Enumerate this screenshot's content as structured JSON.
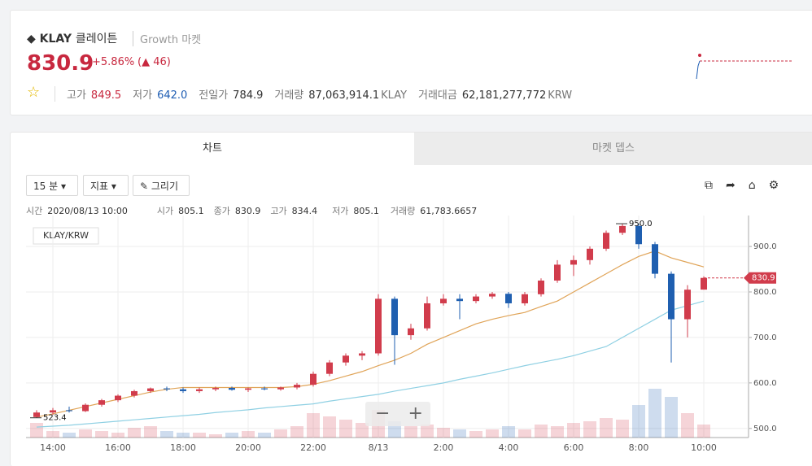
{
  "header": {
    "symbol": "KLAY",
    "name": "클레이튼",
    "market": "Growth 마켓",
    "price": "830.9",
    "change_rate": "+5.86%",
    "change": "46",
    "stats": [
      {
        "label": "고가",
        "value": "849.5"
      },
      {
        "label": "저가",
        "value": "642.0"
      },
      {
        "label": "전일가",
        "value": "784.9"
      },
      {
        "label": "거래량",
        "value": "87,063,914.1",
        "unit": "KLAY"
      },
      {
        "label": "거래대금",
        "value": "62,181,277,772",
        "unit": "KRW"
      }
    ]
  },
  "tabs": [
    "차트",
    "마켓 뎁스"
  ],
  "toolbar": [
    "15 분",
    "지표",
    "그리기"
  ],
  "info": [
    {
      "label": "시간",
      "value": "2020/08/13 10:00"
    },
    {
      "label": "시가",
      "value": "805.1"
    },
    {
      "label": "종가",
      "value": "830.9"
    },
    {
      "label": "고가",
      "value": "834.4"
    },
    {
      "label": "저가",
      "value": "805.1"
    },
    {
      "label": "거래량",
      "value": "61,783.6657"
    }
  ],
  "chart_data": {
    "type": "candlestick",
    "pair": "KLAY/KRW",
    "categories": [
      null,
      "14:00",
      null,
      null,
      null,
      "16:00",
      null,
      null,
      null,
      "18:00",
      null,
      null,
      null,
      "20:00",
      null,
      null,
      null,
      "22:00",
      null,
      null,
      null,
      "8/13",
      null,
      null,
      null,
      "2:00",
      null,
      null,
      null,
      "4:00",
      null,
      null,
      null,
      "6:00",
      null,
      null,
      null,
      "8:00",
      null,
      null,
      null,
      "10:00"
    ],
    "open": [
      525,
      535,
      540,
      538,
      552,
      562,
      572,
      582,
      588,
      586,
      582,
      586,
      589,
      585,
      588,
      586,
      590,
      596,
      620,
      645,
      660,
      665,
      785,
      705,
      720,
      775,
      785,
      780,
      790,
      796,
      775,
      795,
      825,
      860,
      870,
      895,
      930,
      945,
      905,
      840,
      740,
      805.1
    ],
    "high": [
      540,
      545,
      548,
      555,
      565,
      575,
      585,
      590,
      592,
      590,
      590,
      592,
      592,
      590,
      592,
      592,
      600,
      625,
      650,
      665,
      670,
      795,
      790,
      730,
      790,
      795,
      795,
      795,
      800,
      800,
      800,
      830,
      870,
      880,
      900,
      935,
      950,
      950,
      910,
      845,
      815,
      834.4
    ],
    "low": [
      523.4,
      530,
      535,
      536,
      548,
      558,
      568,
      578,
      582,
      578,
      578,
      582,
      583,
      580,
      584,
      583,
      586,
      592,
      615,
      638,
      650,
      660,
      640,
      695,
      715,
      770,
      740,
      775,
      785,
      765,
      770,
      790,
      820,
      835,
      860,
      890,
      925,
      895,
      830,
      645,
      700,
      805.1
    ],
    "close": [
      535,
      540,
      538,
      552,
      562,
      572,
      582,
      588,
      586,
      582,
      586,
      589,
      585,
      588,
      586,
      590,
      596,
      620,
      645,
      660,
      665,
      785,
      705,
      720,
      775,
      785,
      780,
      790,
      796,
      775,
      795,
      825,
      860,
      870,
      895,
      930,
      945,
      905,
      840,
      740,
      805,
      830.9
    ],
    "up_color": "#d13c4c",
    "down_color": "#1f5fb0",
    "moving_averages": [
      {
        "color": "#e0a458",
        "values": [
          525,
          532,
          540,
          548,
          556,
          564,
          572,
          580,
          586,
          590,
          590,
          590,
          590,
          590,
          590,
          590,
          592,
          597,
          605,
          615,
          625,
          638,
          650,
          665,
          685,
          700,
          715,
          730,
          740,
          748,
          755,
          768,
          780,
          800,
          820,
          840,
          860,
          878,
          890,
          875,
          865,
          855
        ]
      },
      {
        "color": "#8fd0e3",
        "values": [
          503,
          505,
          507,
          510,
          513,
          516,
          519,
          522,
          525,
          528,
          531,
          535,
          538,
          541,
          545,
          548,
          551,
          554,
          560,
          565,
          570,
          575,
          582,
          588,
          594,
          600,
          608,
          615,
          622,
          630,
          638,
          645,
          652,
          660,
          670,
          680,
          700,
          720,
          740,
          760,
          770,
          780
        ]
      }
    ],
    "volume": [
      18,
      8,
      6,
      10,
      8,
      6,
      12,
      14,
      8,
      6,
      6,
      4,
      6,
      8,
      6,
      10,
      14,
      30,
      26,
      22,
      18,
      34,
      20,
      14,
      16,
      12,
      10,
      8,
      10,
      14,
      10,
      16,
      14,
      18,
      20,
      24,
      22,
      40,
      60,
      50,
      30,
      16
    ],
    "extremes": [
      {
        "value": 523.4,
        "label": "523.4"
      },
      {
        "value": 950,
        "label": "950.0"
      }
    ],
    "last_price": {
      "value": 830.9,
      "label": "830.9"
    },
    "ylim": [
      480,
      968
    ],
    "yticks": [
      {
        "value": 500,
        "label": "500.0"
      },
      {
        "value": 600,
        "label": "600.0"
      },
      {
        "value": 700,
        "label": "700.0"
      },
      {
        "value": 800,
        "label": "800.0"
      },
      {
        "value": 900,
        "label": "900.0"
      }
    ],
    "grid": true
  }
}
